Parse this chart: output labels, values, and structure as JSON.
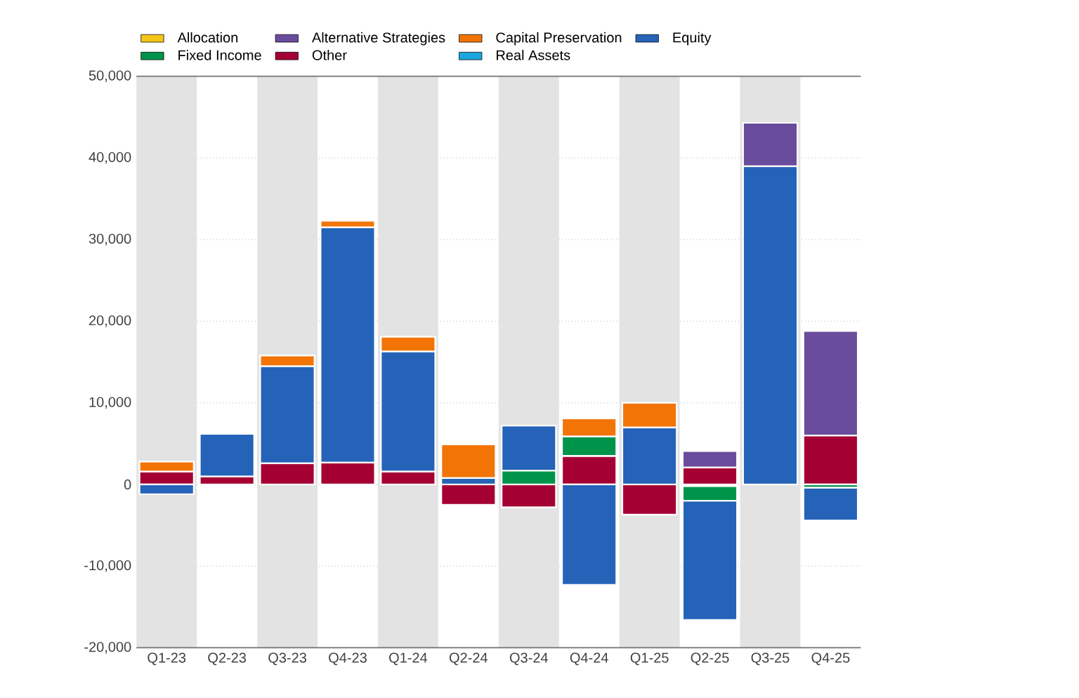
{
  "chart_data": {
    "type": "bar",
    "stacked": true,
    "categories": [
      "Q1-23",
      "Q2-23",
      "Q3-23",
      "Q4-23",
      "Q1-24",
      "Q2-24",
      "Q3-24",
      "Q4-24",
      "Q1-25",
      "Q2-25",
      "Q3-25",
      "Q4-25"
    ],
    "series": [
      {
        "name": "Real Assets",
        "color": "#1aa6e0",
        "values": [
          null,
          null,
          null,
          null,
          null,
          null,
          null,
          null,
          null,
          -200,
          null,
          null
        ]
      },
      {
        "name": "Other",
        "color": "#a50034",
        "values": [
          1600,
          1000,
          2600,
          2700,
          1600,
          -2500,
          -2800,
          3500,
          -3700,
          2100,
          null,
          6000
        ]
      },
      {
        "name": "Fixed Income",
        "color": "#00944a",
        "values": [
          null,
          null,
          null,
          null,
          null,
          null,
          1700,
          2400,
          null,
          -1800,
          null,
          -400
        ]
      },
      {
        "name": "Equity",
        "color": "#2563b8",
        "values": [
          -1200,
          5200,
          11900,
          28800,
          14700,
          800,
          5500,
          -12300,
          7000,
          -14600,
          39000,
          -4000
        ]
      },
      {
        "name": "Capital Preservation",
        "color": "#f27405",
        "values": [
          1200,
          null,
          1300,
          800,
          1800,
          4100,
          null,
          2200,
          3000,
          null,
          null,
          null
        ]
      },
      {
        "name": "Alternative Strategies",
        "color": "#6a4c9c",
        "values": [
          null,
          null,
          null,
          null,
          null,
          null,
          null,
          null,
          null,
          2000,
          5300,
          12800
        ]
      },
      {
        "name": "Allocation",
        "color": "#f5c518",
        "values": [
          null,
          null,
          null,
          null,
          null,
          null,
          null,
          null,
          null,
          null,
          null,
          null
        ]
      }
    ],
    "ylim": [
      -20000,
      50000
    ],
    "yticks": [
      {
        "value": -20000,
        "label": "-20,000"
      },
      {
        "value": -10000,
        "label": "-10,000"
      },
      {
        "value": 0,
        "label": "0"
      },
      {
        "value": 10000,
        "label": "10,000"
      },
      {
        "value": 20000,
        "label": "20,000"
      },
      {
        "value": 30000,
        "label": "30,000"
      },
      {
        "value": 40000,
        "label": "40,000"
      },
      {
        "value": 50000,
        "label": "50,000"
      }
    ],
    "grid": "y",
    "legend": "top left",
    "bands": [
      {
        "axis": "x",
        "from": "Q1-23",
        "to": "Q1-23",
        "color": "#e3e3e3"
      },
      {
        "axis": "x",
        "from": "Q3-23",
        "to": "Q3-23",
        "color": "#e3e3e3"
      },
      {
        "axis": "x",
        "from": "Q1-24",
        "to": "Q1-24",
        "color": "#e3e3e3"
      },
      {
        "axis": "x",
        "from": "Q3-24",
        "to": "Q3-24",
        "color": "#e3e3e3"
      },
      {
        "axis": "x",
        "from": "Q1-25",
        "to": "Q1-25",
        "color": "#e3e3e3"
      },
      {
        "axis": "x",
        "from": "Q3-25",
        "to": "Q3-25",
        "color": "#e3e3e3"
      }
    ]
  }
}
